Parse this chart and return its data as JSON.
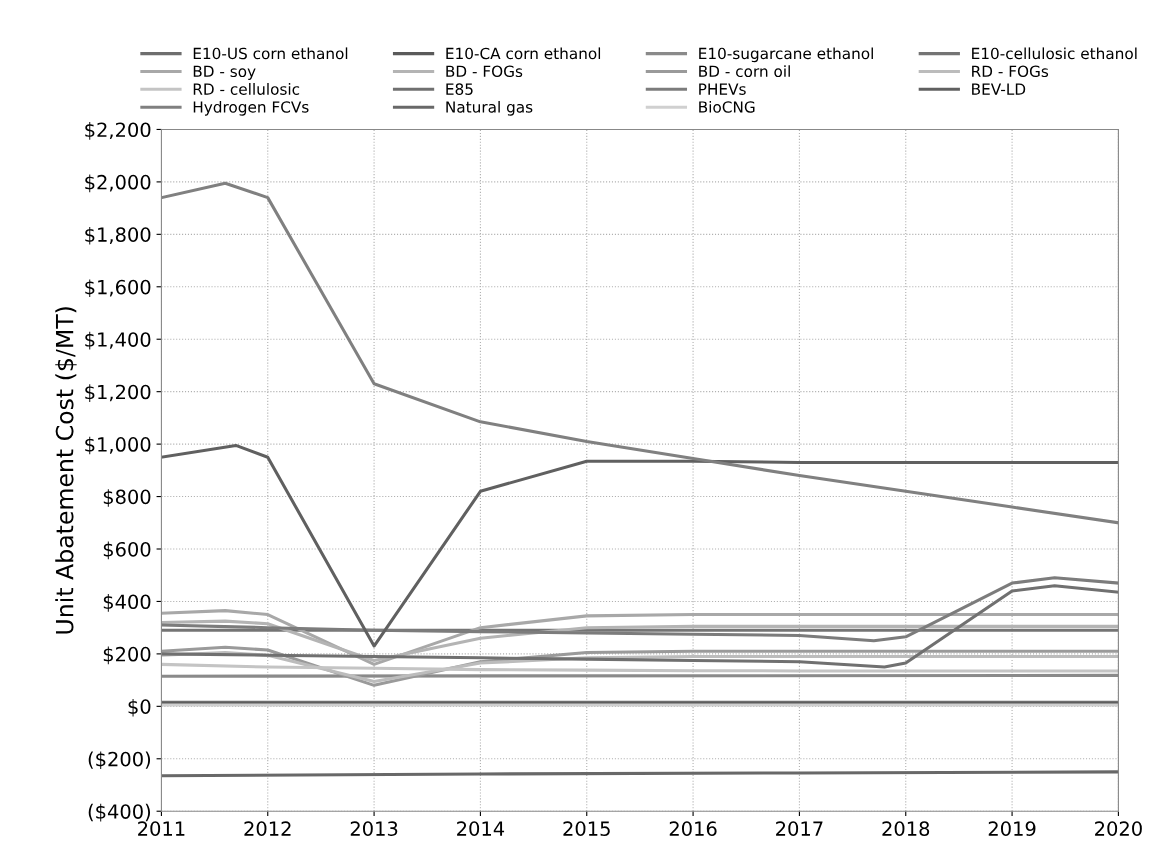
{
  "chart_data": {
    "type": "line",
    "ylabel": "Unit Abatement Cost ($/MT)",
    "xlim": [
      2011,
      2020
    ],
    "xticks": [
      2011,
      2012,
      2013,
      2014,
      2015,
      2016,
      2017,
      2018,
      2019,
      2020
    ],
    "ylim": [
      -400,
      2200
    ],
    "yticks": [
      {
        "value": -400,
        "label": "($400)"
      },
      {
        "value": -200,
        "label": "($200)"
      },
      {
        "value": 0,
        "label": "$0"
      },
      {
        "value": 200,
        "label": "$200"
      },
      {
        "value": 400,
        "label": "$400"
      },
      {
        "value": 600,
        "label": "$600"
      },
      {
        "value": 800,
        "label": "$800"
      },
      {
        "value": 1000,
        "label": "$1,000"
      },
      {
        "value": 1200,
        "label": "$1,200"
      },
      {
        "value": 1400,
        "label": "$1,400"
      },
      {
        "value": 1600,
        "label": "$1,600"
      },
      {
        "value": 1800,
        "label": "$1,800"
      },
      {
        "value": 2000,
        "label": "$2,000"
      },
      {
        "value": 2200,
        "label": "$2,200"
      }
    ],
    "grid": true,
    "legend": "top",
    "marker": "none",
    "line_style": "solid",
    "series": [
      {
        "name": "E10-US corn ethanol",
        "color": "#6e6e6e",
        "x": [
          2011,
          2020
        ],
        "values": [
          15,
          15
        ]
      },
      {
        "name": "E10-CA corn ethanol",
        "color": "#5a5a5a",
        "x": [
          2011,
          2020
        ],
        "values": [
          10,
          10
        ]
      },
      {
        "name": "E10-sugarcane ethanol",
        "color": "#8a8a8a",
        "x": [
          2011,
          2020
        ],
        "values": [
          115,
          118
        ]
      },
      {
        "name": "E10-cellulosic ethanol",
        "color": "#747474",
        "x": [
          2011,
          2020
        ],
        "values": [
          290,
          290
        ]
      },
      {
        "name": "BD - soy",
        "color": "#a8a8a8",
        "x": [
          2011,
          2011.6,
          2012,
          2013,
          2014,
          2015,
          2016,
          2017,
          2018,
          2019,
          2020
        ],
        "values": [
          355,
          365,
          350,
          160,
          300,
          345,
          350,
          350,
          350,
          350,
          350
        ]
      },
      {
        "name": "BD - FOGs",
        "color": "#b4b4b4",
        "x": [
          2011,
          2011.6,
          2012,
          2013,
          2014,
          2015,
          2016,
          2017,
          2018,
          2019,
          2020
        ],
        "values": [
          320,
          325,
          315,
          175,
          260,
          300,
          305,
          305,
          305,
          305,
          305
        ]
      },
      {
        "name": "BD - corn oil",
        "color": "#9a9a9a",
        "x": [
          2011,
          2011.6,
          2012,
          2013,
          2014,
          2015,
          2016,
          2017,
          2018,
          2019,
          2020
        ],
        "values": [
          210,
          225,
          215,
          80,
          170,
          205,
          210,
          210,
          210,
          210,
          210
        ]
      },
      {
        "name": "RD - FOGs",
        "color": "#bcbcbc",
        "x": [
          2011,
          2011.6,
          2012,
          2013,
          2014,
          2015,
          2016,
          2017,
          2018,
          2019,
          2020
        ],
        "values": [
          195,
          205,
          195,
          95,
          165,
          185,
          190,
          190,
          190,
          190,
          190
        ]
      },
      {
        "name": "RD - cellulosic",
        "color": "#c4c4c4",
        "x": [
          2011,
          2012,
          2013,
          2014,
          2015,
          2016,
          2017,
          2018,
          2019,
          2020
        ],
        "values": [
          160,
          150,
          145,
          140,
          138,
          136,
          135,
          135,
          135,
          135
        ]
      },
      {
        "name": "E85",
        "color": "#707070",
        "x": [
          2011,
          2012,
          2013,
          2014,
          2015,
          2016,
          2017,
          2017.8,
          2018,
          2019,
          2019.4,
          2020
        ],
        "values": [
          200,
          195,
          190,
          185,
          180,
          175,
          170,
          150,
          165,
          440,
          460,
          435
        ]
      },
      {
        "name": "PHEVs",
        "color": "#7c7c7c",
        "x": [
          2011,
          2012,
          2013,
          2014,
          2015,
          2016,
          2017,
          2017.7,
          2018,
          2019,
          2019.4,
          2020
        ],
        "values": [
          310,
          300,
          290,
          285,
          280,
          275,
          270,
          250,
          265,
          470,
          490,
          470
        ]
      },
      {
        "name": "BEV-LD",
        "color": "#606060",
        "x": [
          2011,
          2011.7,
          2012,
          2013,
          2014,
          2015,
          2016,
          2017,
          2018,
          2019,
          2020
        ],
        "values": [
          950,
          995,
          950,
          230,
          820,
          935,
          935,
          930,
          930,
          930,
          930
        ]
      },
      {
        "name": "Hydrogen FCVs",
        "color": "#808080",
        "x": [
          2011,
          2011.6,
          2012,
          2013,
          2014,
          2015,
          2016,
          2017,
          2018,
          2019,
          2020
        ],
        "values": [
          1940,
          1995,
          1940,
          1230,
          1085,
          1010,
          945,
          880,
          820,
          760,
          700
        ]
      },
      {
        "name": "Natural gas",
        "color": "#686868",
        "x": [
          2011,
          2014,
          2017,
          2020
        ],
        "values": [
          -265,
          -258,
          -254,
          -250
        ]
      },
      {
        "name": "BioCNG",
        "color": "#d0d0d0",
        "x": [
          2011,
          2020
        ],
        "values": [
          5,
          5
        ]
      }
    ]
  }
}
